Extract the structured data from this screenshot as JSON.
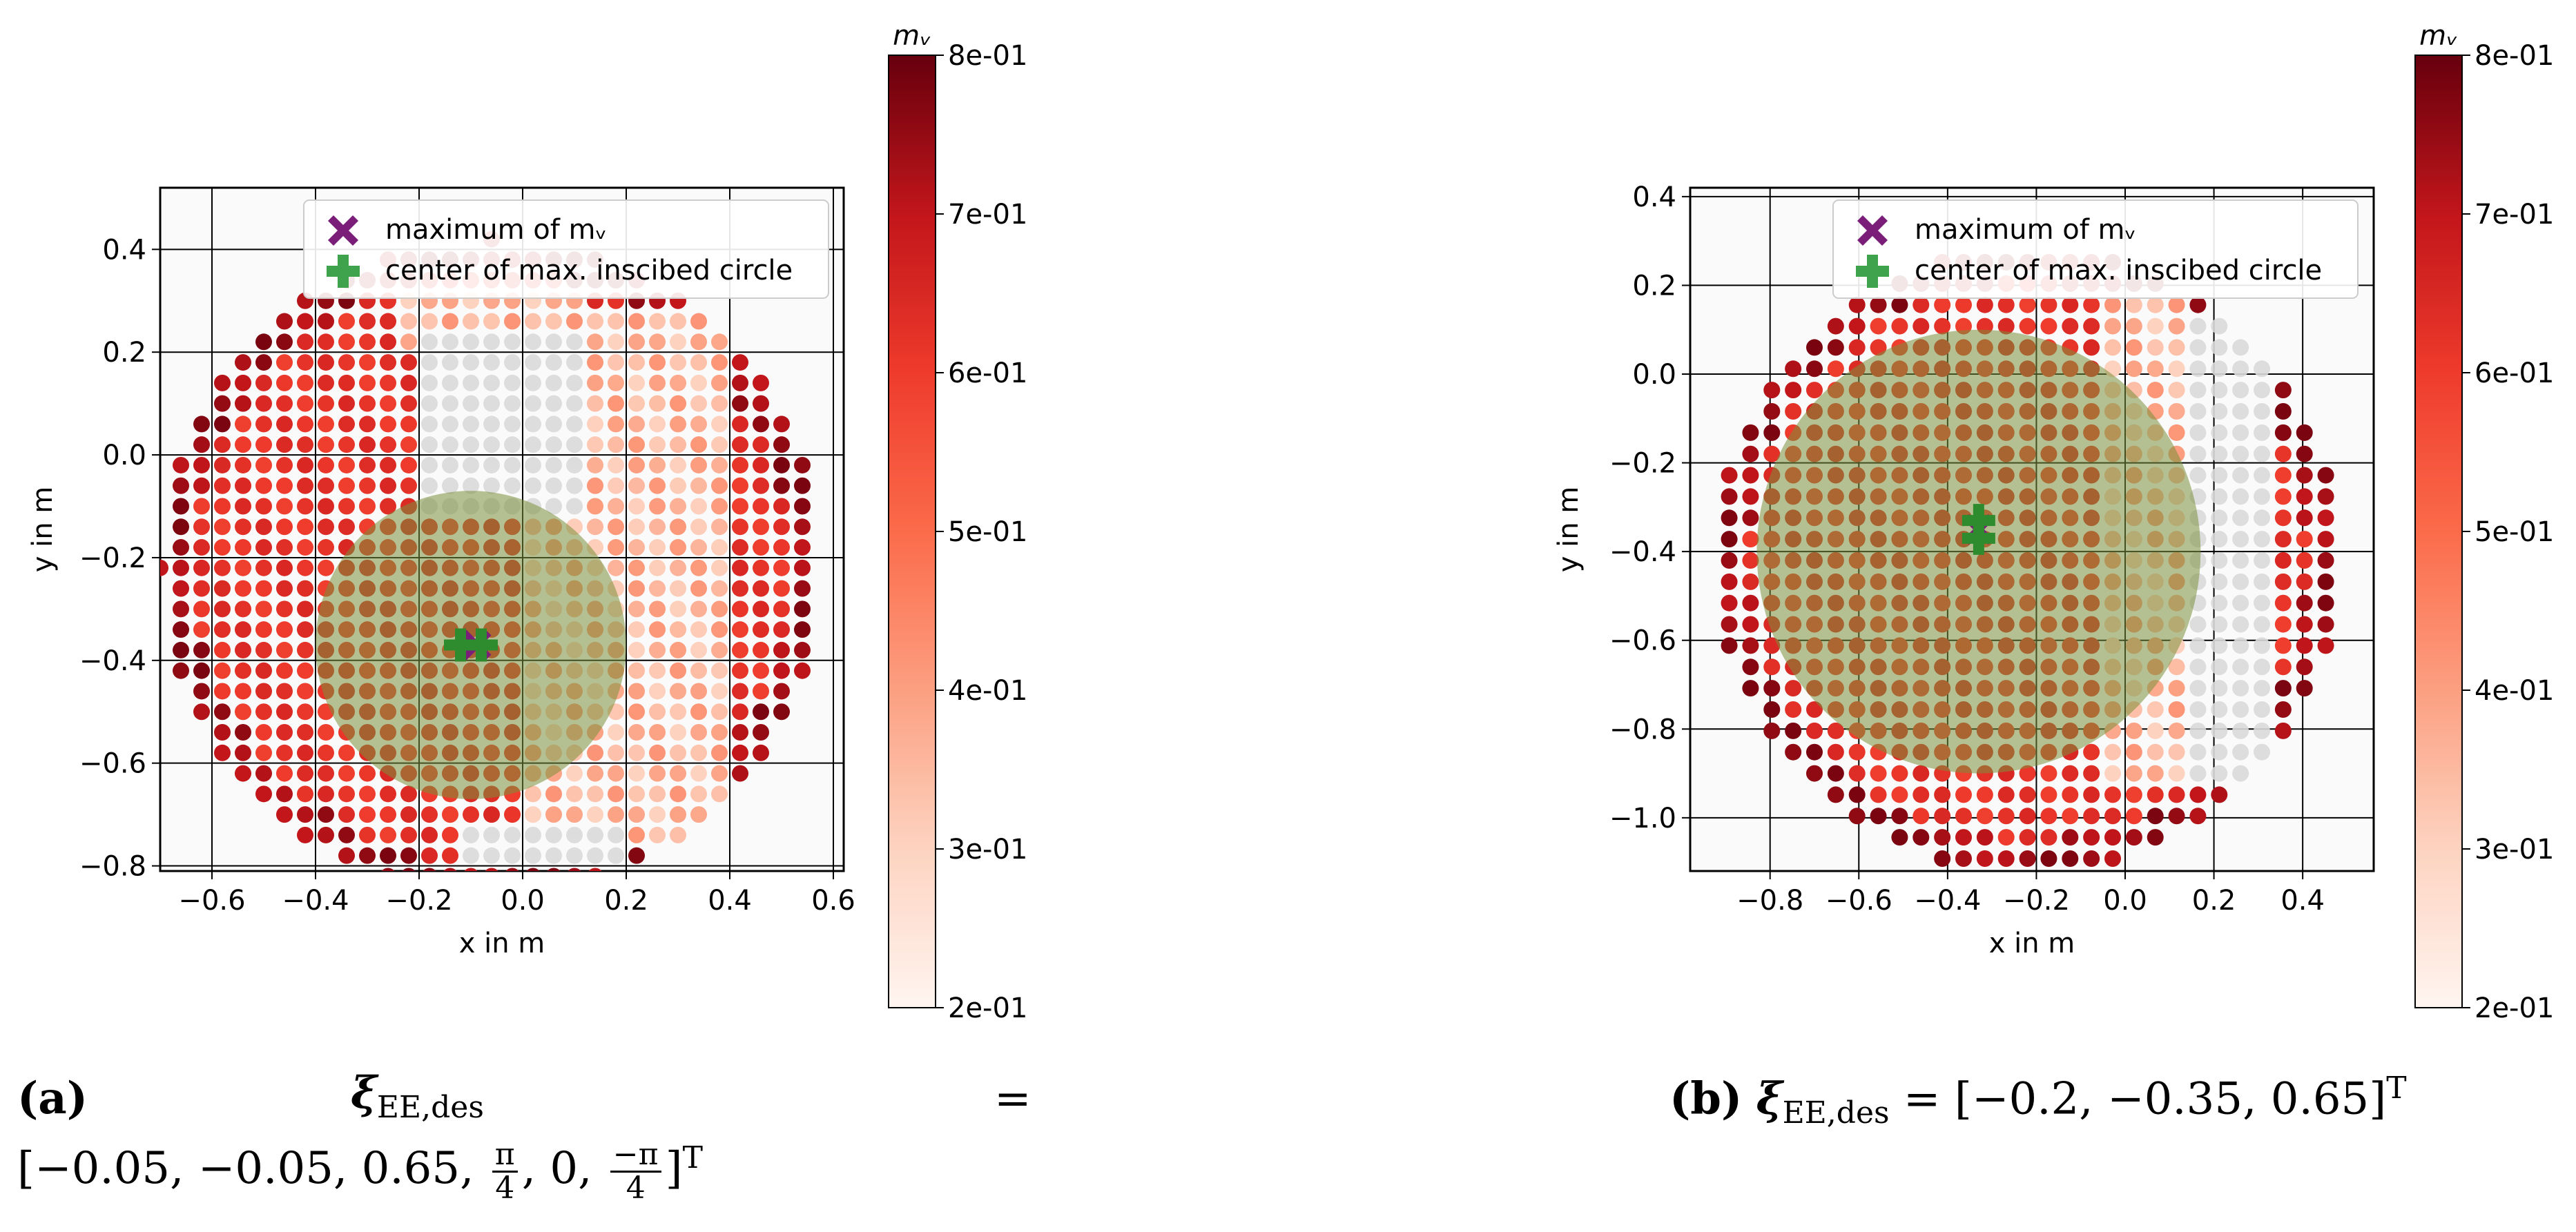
{
  "colorscale": {
    "min": 0.2,
    "max": 0.8,
    "stops": [
      "#fff5f0",
      "#fdd2bf",
      "#fca082",
      "#fb6b4a",
      "#ee3a2c",
      "#c3161b",
      "#67000d"
    ]
  },
  "colors": {
    "max_marker": "#7b1e7a",
    "center_marker": "#3fa34d",
    "circle_fill": "#7a8f3a",
    "missing_point": "#d9d9d9"
  },
  "chart_data": [
    {
      "type": "scatter",
      "panel": "a",
      "xlabel": "x in m",
      "ylabel": "y in m",
      "xlim": [
        -0.7,
        0.62
      ],
      "ylim": [
        -0.81,
        0.52
      ],
      "xticks": [
        -0.6,
        -0.4,
        -0.2,
        0.0,
        0.2,
        0.4,
        0.6
      ],
      "xtick_labels": [
        "−0.6",
        "−0.4",
        "−0.2",
        "0.0",
        "0.2",
        "0.4",
        "0.6"
      ],
      "yticks": [
        -0.8,
        -0.6,
        -0.4,
        -0.2,
        0.0,
        0.2,
        0.4
      ],
      "ytick_labels": [
        "−0.8",
        "−0.6",
        "−0.4",
        "−0.2",
        "0.0",
        "0.2",
        "0.4"
      ],
      "grid": true,
      "workspace": {
        "center": [
          -0.06,
          -0.22
        ],
        "radius": 0.64
      },
      "grid_step": 0.04,
      "missing_regions": [
        {
          "x": [
            -0.2,
            0.1
          ],
          "y": [
            -0.1,
            0.25
          ]
        },
        {
          "x": [
            -0.1,
            0.2
          ],
          "y": [
            -0.78,
            -0.72
          ]
        }
      ],
      "faded_regions": [
        {
          "x": [
            -0.22,
            0.1
          ],
          "y": [
            0.22,
            0.32
          ]
        },
        {
          "x": [
            0.02,
            0.38
          ],
          "y": [
            -0.75,
            0.3
          ]
        }
      ],
      "legend": {
        "position": "top",
        "entries": [
          "maximum of mᵥ",
          "center of max. inscibed circle"
        ]
      },
      "inscribed_circle": {
        "center": [
          -0.1,
          -0.37
        ],
        "radius": 0.3
      },
      "max_marker": [
        -0.09,
        -0.37
      ],
      "center_markers": [
        [
          -0.12,
          -0.37
        ],
        [
          -0.08,
          -0.37
        ]
      ],
      "colorbar": {
        "label": "mᵥ",
        "ticks": [
          0.2,
          0.3,
          0.4,
          0.5,
          0.6,
          0.7,
          0.8
        ],
        "tick_labels": [
          "2e-01",
          "3e-01",
          "4e-01",
          "5e-01",
          "6e-01",
          "7e-01",
          "8e-01"
        ]
      }
    },
    {
      "type": "scatter",
      "panel": "b",
      "xlabel": "x in m",
      "ylabel": "y in m",
      "xlim": [
        -0.98,
        0.56
      ],
      "ylim": [
        -1.12,
        0.42
      ],
      "xticks": [
        -0.8,
        -0.6,
        -0.4,
        -0.2,
        0.0,
        0.2,
        0.4
      ],
      "xtick_labels": [
        "−0.8",
        "−0.6",
        "−0.4",
        "−0.2",
        "0.0",
        "0.2",
        "0.4"
      ],
      "yticks": [
        -1.0,
        -0.8,
        -0.6,
        -0.4,
        -0.2,
        0.0,
        0.2,
        0.4
      ],
      "ytick_labels": [
        "−1.0",
        "−0.8",
        "−0.6",
        "−0.4",
        "−0.2",
        "0.0",
        "0.2",
        "0.4"
      ],
      "grid": true,
      "workspace": {
        "center": [
          -0.22,
          -0.42
        ],
        "radius": 0.7
      },
      "grid_step": 0.048,
      "missing_regions": [
        {
          "x": [
            0.12,
            0.34
          ],
          "y": [
            -0.9,
            0.15
          ]
        }
      ],
      "faded_regions": [
        {
          "x": [
            -0.05,
            0.15
          ],
          "y": [
            -0.92,
            0.2
          ]
        }
      ],
      "legend": {
        "position": "top",
        "entries": [
          "maximum of mᵥ",
          "center of max. inscibed circle"
        ]
      },
      "inscribed_circle": {
        "center": [
          -0.33,
          -0.4
        ],
        "radius": 0.5
      },
      "max_marker": [
        -0.33,
        -0.35
      ],
      "center_markers": [
        [
          -0.33,
          -0.33
        ],
        [
          -0.33,
          -0.37
        ]
      ],
      "colorbar": {
        "label": "mᵥ",
        "ticks": [
          0.2,
          0.3,
          0.4,
          0.5,
          0.6,
          0.7,
          0.8
        ],
        "tick_labels": [
          "2e-01",
          "3e-01",
          "4e-01",
          "5e-01",
          "6e-01",
          "7e-01",
          "8e-01"
        ]
      }
    }
  ],
  "captions": {
    "a": {
      "label": "(a)",
      "xi": "ξ",
      "sub": "EE,des",
      "eq": "=",
      "line2_prefix": "[−0.05, −0.05, 0.65,",
      "frac1_num": "π",
      "frac1_den": "4",
      "middle": ", 0,",
      "frac2_num": "−π",
      "frac2_den": "4",
      "suffix": "]",
      "sup": "T"
    },
    "b": {
      "label": "(b)",
      "xi": "ξ",
      "sub": "EE,des",
      "eq": "=",
      "vector": "[−0.2, −0.35, 0.65]",
      "sup": "T"
    }
  }
}
